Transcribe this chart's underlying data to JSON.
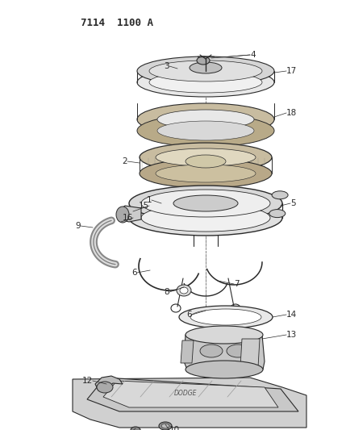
{
  "title": "7114  1100 A",
  "bg_color": "#ffffff",
  "lc": "#2a2a2a",
  "lc_light": "#555555",
  "fig_w": 4.29,
  "fig_h": 5.33,
  "dpi": 100
}
